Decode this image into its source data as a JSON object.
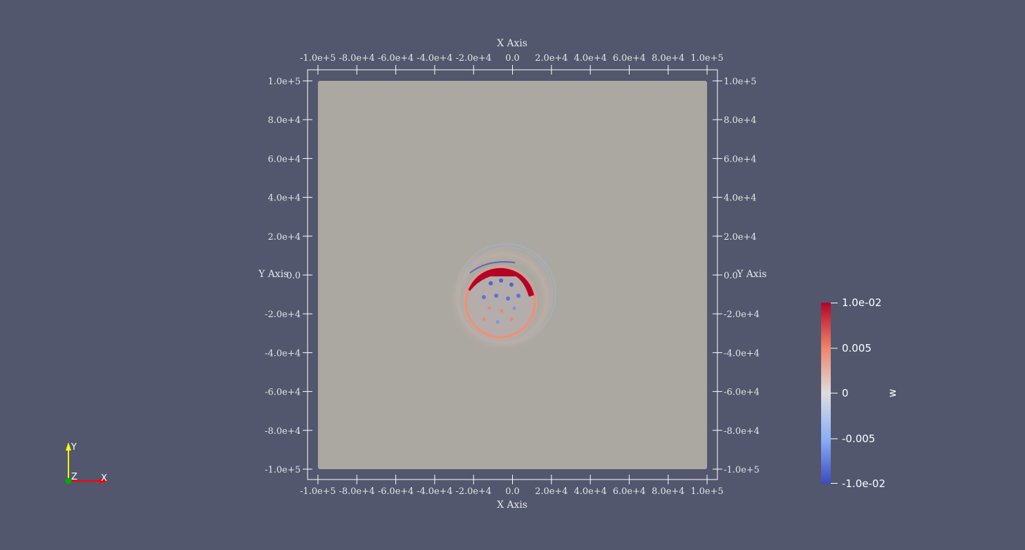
{
  "render_view": {
    "background_color": "#52576d",
    "plot_surface_color": "#aaa8a0",
    "axis_color": "#ffffff"
  },
  "axes": {
    "x_title": "X Axis",
    "y_title": "Y Axis",
    "x_ticks": [
      "-1.0e+5",
      "-8.0e+4",
      "-6.0e+4",
      "-4.0e+4",
      "-2.0e+4",
      "0.0",
      "2.0e+4",
      "4.0e+4",
      "6.0e+4",
      "8.0e+4",
      "1.0e+5"
    ],
    "y_ticks": [
      "1.0e+5",
      "8.0e+4",
      "6.0e+4",
      "4.0e+4",
      "2.0e+4",
      "0.0",
      "-2.0e+4",
      "-4.0e+4",
      "-6.0e+4",
      "-8.0e+4",
      "-1.0e+5"
    ]
  },
  "color_bar": {
    "title": "w",
    "labels": [
      "1.0e-02",
      "0.005",
      "0",
      "-0.005",
      "-1.0e-02"
    ],
    "color_max": "#b40426",
    "color_mid": "#dddddd",
    "color_min": "#3b4cc0"
  },
  "orientation_axes": {
    "x_label": "X",
    "y_label": "Y",
    "z_label": "Z",
    "x_color": "#ff0000",
    "y_color": "#ffff00",
    "z_color": "#00aa00"
  }
}
